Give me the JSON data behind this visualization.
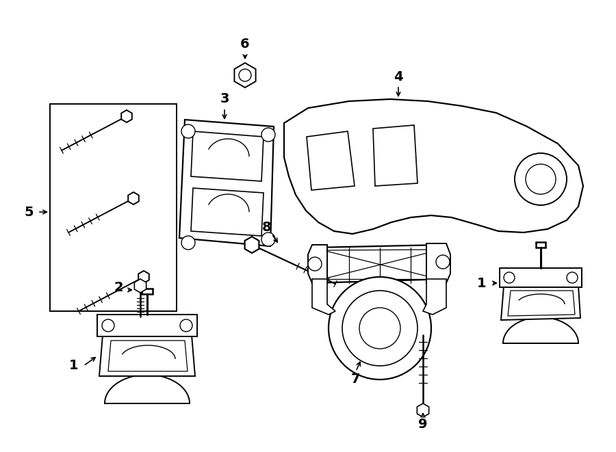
{
  "bg": "#ffffff",
  "lc": "#000000",
  "lw": 1.4,
  "fw": 9.0,
  "fh": 6.61,
  "dpi": 100
}
